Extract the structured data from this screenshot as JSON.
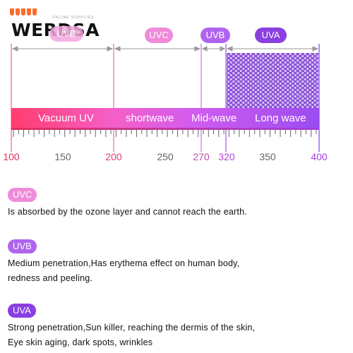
{
  "logo": {
    "text": "WERDSA",
    "tagline": "ONLINE SUPPLIES"
  },
  "top_labels": {
    "uvb_faded": "UVB",
    "uvc": "UVC",
    "uvb": "UVB",
    "uva": "UVA"
  },
  "bands": {
    "vacuum": "Vacuum UV",
    "short": "shortwave",
    "mid": "Mid-wave",
    "long": "Long wave"
  },
  "axis_ticks": [
    "100",
    "150",
    "200",
    "250",
    "270",
    "320",
    "350",
    "400"
  ],
  "sections": {
    "uvc": {
      "tag": "UVC",
      "text": "Is absorbed by the ozone layer and cannot reach the earth."
    },
    "uvb": {
      "tag": "UVB",
      "line1": "Medium penetrati​on,Has erythema effect on human body,",
      "line2": "redness and peeling."
    },
    "uva": {
      "tag": "UVA",
      "line1": "Strong penetration,Sun killer, reaching the dermis of the skin,",
      "line2": "Eye skin aging, dark spots, wrinkles"
    }
  },
  "colors": {
    "vacuum": "#ff3d6e",
    "short": "#f05bd0",
    "mid": "#c85bf0",
    "long": "#a04ff0",
    "uvc_pill": "#f08ad9",
    "uvb_pill": "#b064ee",
    "uva_pill": "#8a3fe0",
    "axis_red": "#e0305a",
    "axis_purple": "#a040e0"
  }
}
